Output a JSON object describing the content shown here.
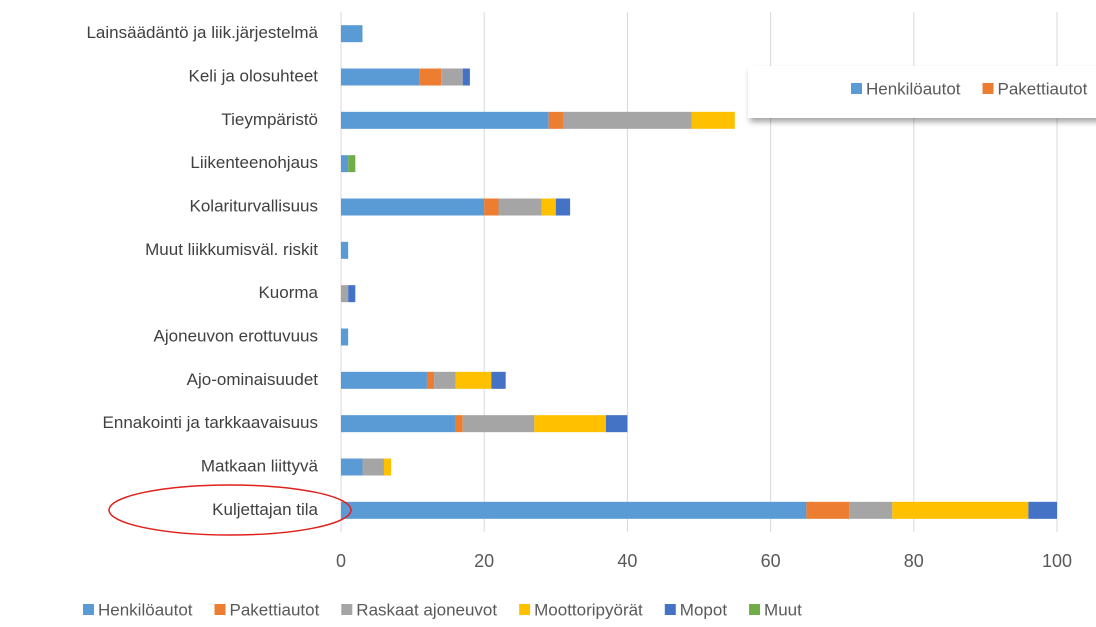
{
  "chart_data": {
    "type": "stacked_barh",
    "categories": [
      "Lainsäädäntö ja liik.järjestelmä",
      "Keli ja olosuhteet",
      "Tieympäristö",
      "Liikenteenohjaus",
      "Kolariturvallisuus",
      "Muut liikkumisväl. riskit",
      "Kuorma",
      "Ajoneuvon erottuvuus",
      "Ajo-ominaisuudet",
      "Ennakointi ja tarkkaavaisuus",
      "Matkaan liittyvä",
      "Kuljettajan tila"
    ],
    "series": [
      {
        "name": "Henkilöautot",
        "color": "#5b9bd5",
        "values": [
          3,
          11,
          29,
          1,
          20,
          1,
          0,
          1,
          12,
          16,
          3,
          65
        ]
      },
      {
        "name": "Pakettiautot",
        "color": "#ed7d31",
        "values": [
          0,
          3,
          2,
          0,
          2,
          0,
          0,
          0,
          1,
          1,
          0,
          6
        ]
      },
      {
        "name": "Raskaat ajoneuvot",
        "color": "#a5a5a5",
        "values": [
          0,
          3,
          18,
          0,
          6,
          0,
          1,
          0,
          3,
          10,
          3,
          6
        ]
      },
      {
        "name": "Moottoripyörät",
        "color": "#ffc000",
        "values": [
          0,
          0,
          6,
          0,
          2,
          0,
          0,
          0,
          5,
          10,
          1,
          19
        ]
      },
      {
        "name": "Mopot",
        "color": "#4472c4",
        "values": [
          0,
          1,
          0,
          0,
          2,
          0,
          1,
          0,
          2,
          3,
          0,
          4
        ]
      },
      {
        "name": "Muut",
        "color": "#70ad47",
        "values": [
          0,
          0,
          0,
          1,
          0,
          0,
          0,
          0,
          0,
          0,
          0,
          0
        ]
      }
    ],
    "xlim": [
      0,
      100
    ],
    "xticks": [
      0,
      20,
      40,
      60,
      80,
      100
    ],
    "grid": true,
    "legend": "bottom"
  }
}
